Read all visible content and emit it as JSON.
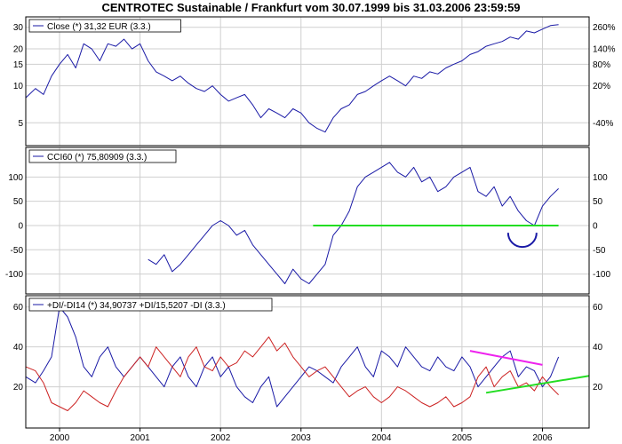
{
  "title": "CENTROTEC Sustainable / Frankfurt vom 30.07.1999 bis 31.03.2006 23:59:59",
  "colors": {
    "price": "#1a1aa6",
    "plusDI": "#1a1aa6",
    "minusDI": "#cc2222",
    "annotation_green": "#22dd22",
    "annotation_magenta": "#ee22ee",
    "annotation_blue": "#1a1aa6",
    "grid": "#cfcfcf",
    "frame": "#000000"
  },
  "chart_data": [
    {
      "type": "line",
      "panel": "price",
      "legend": "Close (*) 31,32 EUR (3.3.)",
      "yscale": "log",
      "ylim": [
        3.6,
        33
      ],
      "y_ticks_left": [
        "30",
        "20",
        "15",
        "10",
        "5"
      ],
      "y_ticks_left_values": [
        30,
        20,
        15,
        10,
        5
      ],
      "y_ticks_right": [
        "260%",
        "140%",
        "80%",
        "20%",
        "-40%"
      ],
      "y_ticks_right_values": [
        30,
        20,
        15,
        10,
        5
      ],
      "series": [
        {
          "x": [
            1999.58,
            1999.7,
            1999.8,
            1999.9,
            2000.0,
            2000.1,
            2000.2,
            2000.3,
            2000.4,
            2000.5,
            2000.6,
            2000.7,
            2000.8,
            2000.9,
            2001.0,
            2001.1,
            2001.2,
            2001.3,
            2001.4,
            2001.5,
            2001.6,
            2001.7,
            2001.8,
            2001.9,
            2002.0,
            2002.1,
            2002.2,
            2002.3,
            2002.4,
            2002.5,
            2002.6,
            2002.7,
            2002.8,
            2002.9,
            2003.0,
            2003.1,
            2003.2,
            2003.3,
            2003.4,
            2003.5,
            2003.6,
            2003.7,
            2003.8,
            2003.9,
            2004.0,
            2004.1,
            2004.2,
            2004.3,
            2004.4,
            2004.5,
            2004.6,
            2004.7,
            2004.8,
            2004.9,
            2005.0,
            2005.1,
            2005.2,
            2005.3,
            2005.4,
            2005.5,
            2005.6,
            2005.7,
            2005.8,
            2005.9,
            2006.0,
            2006.1,
            2006.2
          ],
          "y": [
            8.0,
            9.5,
            8.5,
            12.0,
            15.0,
            18.0,
            14.0,
            22.0,
            20.0,
            16.0,
            22.0,
            21.0,
            24.0,
            20.0,
            22.0,
            16.0,
            13.0,
            12.0,
            11.0,
            12.0,
            10.5,
            9.5,
            9.0,
            10.0,
            8.5,
            7.5,
            8.0,
            8.5,
            7.0,
            5.5,
            6.5,
            6.0,
            5.5,
            6.5,
            6.0,
            5.0,
            4.5,
            4.2,
            5.5,
            6.5,
            7.0,
            8.5,
            9.0,
            10.0,
            11.0,
            12.0,
            11.0,
            10.0,
            12.0,
            11.5,
            13.0,
            12.5,
            14.0,
            15.0,
            16.0,
            18.0,
            19.0,
            21.0,
            22.0,
            23.0,
            25.0,
            24.0,
            28.0,
            27.0,
            29.0,
            31.0,
            31.5
          ]
        }
      ]
    },
    {
      "type": "line",
      "panel": "cci",
      "legend": "CCI60 (*) 75,80909 (3.3.)",
      "ylim": [
        -130,
        150
      ],
      "y_ticks_left": [
        "100",
        "50",
        "0",
        "-50",
        "-100"
      ],
      "y_ticks_left_values": [
        100,
        50,
        0,
        -50,
        -100
      ],
      "y_ticks_right": [
        "100",
        "50",
        "0",
        "-50",
        "-100"
      ],
      "y_ticks_right_values": [
        100,
        50,
        0,
        -50,
        -100
      ],
      "series": [
        {
          "x": [
            2001.1,
            2001.2,
            2001.3,
            2001.4,
            2001.5,
            2001.6,
            2001.7,
            2001.8,
            2001.9,
            2002.0,
            2002.1,
            2002.2,
            2002.3,
            2002.4,
            2002.5,
            2002.6,
            2002.7,
            2002.8,
            2002.9,
            2003.0,
            2003.1,
            2003.2,
            2003.3,
            2003.4,
            2003.5,
            2003.6,
            2003.7,
            2003.8,
            2003.9,
            2004.0,
            2004.1,
            2004.2,
            2004.3,
            2004.4,
            2004.5,
            2004.6,
            2004.7,
            2004.8,
            2004.9,
            2005.0,
            2005.1,
            2005.2,
            2005.3,
            2005.4,
            2005.5,
            2005.6,
            2005.7,
            2005.8,
            2005.9,
            2006.0,
            2006.1,
            2006.2
          ],
          "y": [
            -70,
            -80,
            -60,
            -95,
            -80,
            -60,
            -40,
            -20,
            0,
            10,
            0,
            -20,
            -10,
            -40,
            -60,
            -80,
            -100,
            -120,
            -90,
            -110,
            -120,
            -100,
            -80,
            -20,
            0,
            30,
            80,
            100,
            110,
            120,
            130,
            110,
            100,
            120,
            90,
            100,
            70,
            80,
            100,
            110,
            120,
            70,
            60,
            80,
            40,
            60,
            30,
            10,
            0,
            40,
            60,
            76
          ]
        }
      ],
      "annotations": [
        {
          "kind": "horizontal-line",
          "y": 0,
          "x_start": 2003.15,
          "x_end": 2006.2,
          "color": "green"
        },
        {
          "kind": "arc",
          "x": 2005.75,
          "y": -15,
          "color": "blue"
        }
      ]
    },
    {
      "type": "line",
      "panel": "dmi",
      "legend": "+DI/-DI14 (*) 34,90737 +DI/15,5207 -DI (3.3.)",
      "ylim": [
        2,
        63
      ],
      "y_ticks_left": [
        "60",
        "40",
        "20"
      ],
      "y_ticks_left_values": [
        60,
        40,
        20
      ],
      "y_ticks_right": [
        "60",
        "40",
        "20"
      ],
      "y_ticks_right_values": [
        60,
        40,
        20
      ],
      "x_ticks": [
        "2000",
        "2001",
        "2002",
        "2003",
        "2004",
        "2005",
        "2006"
      ],
      "x_tick_values": [
        2000,
        2001,
        2002,
        2003,
        2004,
        2005,
        2006
      ],
      "series": [
        {
          "name": "+DI",
          "x": [
            1999.58,
            1999.7,
            1999.8,
            1999.9,
            2000.0,
            2000.1,
            2000.2,
            2000.3,
            2000.4,
            2000.5,
            2000.6,
            2000.7,
            2000.8,
            2000.9,
            2001.0,
            2001.1,
            2001.2,
            2001.3,
            2001.4,
            2001.5,
            2001.6,
            2001.7,
            2001.8,
            2001.9,
            2002.0,
            2002.1,
            2002.2,
            2002.3,
            2002.4,
            2002.5,
            2002.6,
            2002.7,
            2002.8,
            2002.9,
            2003.0,
            2003.1,
            2003.2,
            2003.3,
            2003.4,
            2003.5,
            2003.6,
            2003.7,
            2003.8,
            2003.9,
            2004.0,
            2004.1,
            2004.2,
            2004.3,
            2004.4,
            2004.5,
            2004.6,
            2004.7,
            2004.8,
            2004.9,
            2005.0,
            2005.1,
            2005.2,
            2005.3,
            2005.4,
            2005.5,
            2005.6,
            2005.7,
            2005.8,
            2005.9,
            2006.0,
            2006.1,
            2006.2
          ],
          "y": [
            25,
            22,
            28,
            35,
            60,
            55,
            45,
            30,
            25,
            35,
            40,
            30,
            25,
            30,
            35,
            30,
            25,
            20,
            30,
            35,
            25,
            20,
            30,
            35,
            25,
            30,
            20,
            15,
            12,
            20,
            25,
            10,
            15,
            20,
            25,
            30,
            28,
            25,
            22,
            30,
            35,
            40,
            30,
            25,
            38,
            35,
            30,
            40,
            35,
            30,
            28,
            35,
            30,
            28,
            35,
            30,
            20,
            25,
            30,
            35,
            38,
            25,
            30,
            28,
            20,
            25,
            35
          ]
        },
        {
          "name": "-DI",
          "x": [
            1999.58,
            1999.7,
            1999.8,
            1999.9,
            2000.0,
            2000.1,
            2000.2,
            2000.3,
            2000.4,
            2000.5,
            2000.6,
            2000.7,
            2000.8,
            2000.9,
            2001.0,
            2001.1,
            2001.2,
            2001.3,
            2001.4,
            2001.5,
            2001.6,
            2001.7,
            2001.8,
            2001.9,
            2002.0,
            2002.1,
            2002.2,
            2002.3,
            2002.4,
            2002.5,
            2002.6,
            2002.7,
            2002.8,
            2002.9,
            2003.0,
            2003.1,
            2003.2,
            2003.3,
            2003.4,
            2003.5,
            2003.6,
            2003.7,
            2003.8,
            2003.9,
            2004.0,
            2004.1,
            2004.2,
            2004.3,
            2004.4,
            2004.5,
            2004.6,
            2004.7,
            2004.8,
            2004.9,
            2005.0,
            2005.1,
            2005.2,
            2005.3,
            2005.4,
            2005.5,
            2005.6,
            2005.7,
            2005.8,
            2005.9,
            2006.0,
            2006.1,
            2006.2
          ],
          "y": [
            30,
            28,
            22,
            12,
            10,
            8,
            12,
            18,
            15,
            12,
            10,
            18,
            25,
            30,
            35,
            30,
            40,
            35,
            30,
            25,
            35,
            40,
            30,
            28,
            35,
            30,
            32,
            38,
            35,
            40,
            45,
            38,
            42,
            35,
            30,
            25,
            28,
            30,
            25,
            20,
            15,
            18,
            20,
            15,
            12,
            15,
            20,
            18,
            15,
            12,
            10,
            12,
            15,
            10,
            12,
            15,
            25,
            30,
            20,
            25,
            28,
            20,
            22,
            18,
            25,
            20,
            16
          ]
        }
      ],
      "annotations": [
        {
          "kind": "trend-line",
          "x1": 2005.1,
          "y1": 38,
          "x2": 2006.0,
          "y2": 31,
          "color": "magenta"
        },
        {
          "kind": "trend-line",
          "x1": 2005.3,
          "y1": 17,
          "x2": 2006.58,
          "y2": 25.5,
          "color": "green"
        }
      ]
    }
  ]
}
